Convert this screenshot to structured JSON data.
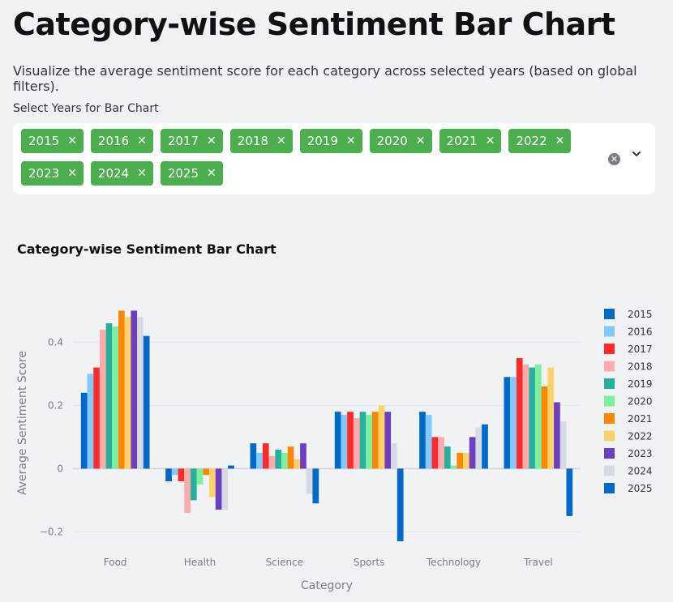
{
  "page": {
    "title": "Category-wise Sentiment Bar Chart",
    "description": "Visualize the average sentiment score for each category across selected years (based on global filters).",
    "select_label": "Select Years for Bar Chart",
    "selected_years": [
      "2015",
      "2016",
      "2017",
      "2018",
      "2019",
      "2020",
      "2021",
      "2022",
      "2023",
      "2024",
      "2025"
    ],
    "tag_remove_glyph": "✕",
    "clear_glyph": "✕"
  },
  "colors": {
    "tag_bg": "#4cae4f",
    "page_bg": "#f0f2f6"
  },
  "chart_data": {
    "type": "bar",
    "title": "Category-wise Sentiment Bar Chart",
    "xlabel": "Category",
    "ylabel": "Average Sentiment Score",
    "categories": [
      "Food",
      "Health",
      "Science",
      "Sports",
      "Technology",
      "Travel"
    ],
    "ylim": [
      -0.24,
      0.56
    ],
    "yticks": [
      -0.2,
      0,
      0.2,
      0.4
    ],
    "ytick_labels": [
      "−0.2",
      "0",
      "0.2",
      "0.4"
    ],
    "grid": true,
    "legend_position": "right",
    "series": [
      {
        "name": "2015",
        "color": "#0068c9",
        "values": [
          0.24,
          -0.04,
          0.08,
          0.18,
          0.18,
          0.29
        ]
      },
      {
        "name": "2016",
        "color": "#83c9ff",
        "values": [
          0.3,
          -0.02,
          0.05,
          0.17,
          0.17,
          0.29
        ]
      },
      {
        "name": "2017",
        "color": "#ff2b2b",
        "values": [
          0.32,
          -0.04,
          0.08,
          0.18,
          0.1,
          0.35
        ]
      },
      {
        "name": "2018",
        "color": "#ffabab",
        "values": [
          0.44,
          -0.14,
          0.04,
          0.16,
          0.1,
          0.33
        ]
      },
      {
        "name": "2019",
        "color": "#29b09d",
        "values": [
          0.46,
          -0.1,
          0.06,
          0.18,
          0.07,
          0.32
        ]
      },
      {
        "name": "2020",
        "color": "#7defa1",
        "values": [
          0.45,
          -0.05,
          0.05,
          0.17,
          0.01,
          0.33
        ]
      },
      {
        "name": "2021",
        "color": "#ff8700",
        "values": [
          0.5,
          -0.02,
          0.07,
          0.18,
          0.05,
          0.26
        ]
      },
      {
        "name": "2022",
        "color": "#ffd16a",
        "values": [
          0.48,
          -0.09,
          0.03,
          0.2,
          0.05,
          0.32
        ]
      },
      {
        "name": "2023",
        "color": "#6d3fc0",
        "values": [
          0.5,
          -0.13,
          0.08,
          0.18,
          0.1,
          0.21
        ]
      },
      {
        "name": "2024",
        "color": "#d5dae5",
        "values": [
          0.48,
          -0.13,
          -0.08,
          0.08,
          0.13,
          0.15
        ]
      },
      {
        "name": "2025",
        "color": "#0068c9",
        "values": [
          0.42,
          0.01,
          -0.11,
          -0.23,
          0.14,
          -0.15
        ]
      }
    ]
  }
}
